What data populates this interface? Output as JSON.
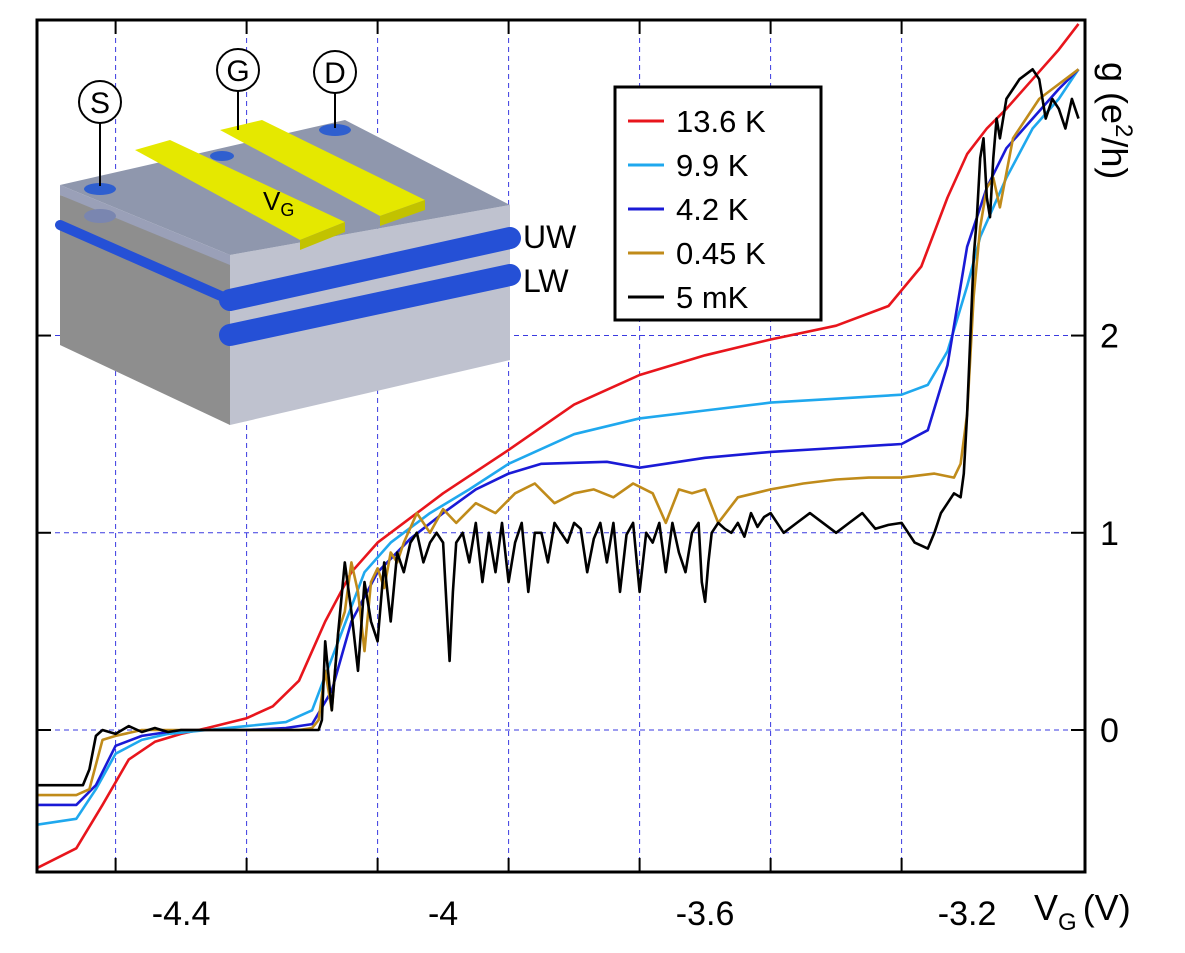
{
  "chart_data": {
    "type": "line",
    "xlabel": "V",
    "xlabel_sub": "G",
    "xunit": "(V)",
    "ylabel": "g (e",
    "ylabel_sup": "2",
    "ylabel_tail": "/h)",
    "xlim": [
      -4.62,
      -3.02
    ],
    "ylim": [
      -0.72,
      3.6
    ],
    "xticks": [
      -4.4,
      -4.0,
      -3.6,
      -3.2
    ],
    "xtick_labels": [
      "-4.4",
      "-4",
      "-3.6",
      "-3.2"
    ],
    "yticks": [
      0,
      1,
      2
    ],
    "ytick_labels": [
      "0",
      "1",
      "2"
    ],
    "grid": true,
    "legend_position": "top-center",
    "series": [
      {
        "name": "13.6 K",
        "color": "#e8151c",
        "x": [
          -4.62,
          -4.56,
          -4.52,
          -4.48,
          -4.44,
          -4.4,
          -4.36,
          -4.3,
          -4.26,
          -4.22,
          -4.18,
          -4.14,
          -4.1,
          -4.04,
          -4.0,
          -3.9,
          -3.8,
          -3.7,
          -3.6,
          -3.5,
          -3.4,
          -3.32,
          -3.27,
          -3.23,
          -3.2,
          -3.17,
          -3.14,
          -3.1,
          -3.06,
          -3.03
        ],
        "y": [
          -0.7,
          -0.6,
          -0.38,
          -0.15,
          -0.06,
          -0.02,
          0.01,
          0.06,
          0.12,
          0.25,
          0.55,
          0.8,
          0.95,
          1.1,
          1.2,
          1.42,
          1.65,
          1.8,
          1.9,
          1.98,
          2.05,
          2.15,
          2.35,
          2.7,
          2.92,
          3.05,
          3.15,
          3.3,
          3.45,
          3.58
        ]
      },
      {
        "name": "9.9 K",
        "color": "#1fa8ee",
        "x": [
          -4.62,
          -4.56,
          -4.53,
          -4.5,
          -4.46,
          -4.42,
          -4.36,
          -4.3,
          -4.24,
          -4.2,
          -4.16,
          -4.12,
          -4.08,
          -4.02,
          -3.96,
          -3.9,
          -3.8,
          -3.7,
          -3.6,
          -3.5,
          -3.4,
          -3.3,
          -3.26,
          -3.23,
          -3.2,
          -3.18,
          -3.14,
          -3.1,
          -3.06,
          -3.03
        ],
        "y": [
          -0.48,
          -0.45,
          -0.3,
          -0.12,
          -0.05,
          -0.02,
          0.0,
          0.02,
          0.04,
          0.1,
          0.45,
          0.8,
          0.95,
          1.1,
          1.22,
          1.35,
          1.5,
          1.58,
          1.62,
          1.66,
          1.68,
          1.7,
          1.75,
          1.92,
          2.25,
          2.5,
          2.8,
          3.05,
          3.2,
          3.35
        ]
      },
      {
        "name": "4.2 K",
        "color": "#1a1ad6",
        "x": [
          -4.62,
          -4.56,
          -4.53,
          -4.5,
          -4.46,
          -4.4,
          -4.3,
          -4.24,
          -4.2,
          -4.17,
          -4.14,
          -4.1,
          -4.05,
          -4.0,
          -3.95,
          -3.9,
          -3.85,
          -3.75,
          -3.7,
          -3.6,
          -3.5,
          -3.4,
          -3.3,
          -3.26,
          -3.23,
          -3.2,
          -3.17,
          -3.14,
          -3.1,
          -3.06,
          -3.03
        ],
        "y": [
          -0.38,
          -0.38,
          -0.28,
          -0.08,
          -0.03,
          0.0,
          0.0,
          0.01,
          0.03,
          0.2,
          0.55,
          0.8,
          0.97,
          1.1,
          1.22,
          1.3,
          1.35,
          1.36,
          1.33,
          1.38,
          1.41,
          1.43,
          1.45,
          1.52,
          1.85,
          2.45,
          2.75,
          2.95,
          3.1,
          3.25,
          3.35
        ]
      },
      {
        "name": "0.45 K",
        "color": "#c08b1a",
        "x": [
          -4.62,
          -4.56,
          -4.54,
          -4.52,
          -4.5,
          -4.46,
          -4.42,
          -4.36,
          -4.28,
          -4.22,
          -4.2,
          -4.19,
          -4.18,
          -4.17,
          -4.16,
          -4.15,
          -4.14,
          -4.13,
          -4.12,
          -4.11,
          -4.1,
          -4.09,
          -4.08,
          -4.07,
          -4.06,
          -4.04,
          -4.02,
          -4.0,
          -3.98,
          -3.95,
          -3.92,
          -3.89,
          -3.86,
          -3.83,
          -3.8,
          -3.77,
          -3.74,
          -3.71,
          -3.68,
          -3.66,
          -3.64,
          -3.62,
          -3.6,
          -3.58,
          -3.55,
          -3.5,
          -3.45,
          -3.4,
          -3.35,
          -3.3,
          -3.25,
          -3.22,
          -3.21,
          -3.2,
          -3.19,
          -3.18,
          -3.17,
          -3.16,
          -3.15,
          -3.13,
          -3.11,
          -3.09,
          -3.07,
          -3.05,
          -3.03
        ],
        "y": [
          -0.33,
          -0.33,
          -0.3,
          -0.05,
          -0.03,
          0.0,
          0.0,
          0.0,
          0.0,
          0.0,
          0.01,
          0.05,
          0.3,
          0.1,
          0.5,
          0.6,
          0.85,
          0.7,
          0.4,
          0.75,
          0.82,
          0.72,
          0.9,
          0.85,
          0.95,
          1.1,
          1.0,
          1.12,
          1.05,
          1.15,
          1.1,
          1.2,
          1.25,
          1.15,
          1.2,
          1.22,
          1.18,
          1.25,
          1.2,
          1.05,
          1.22,
          1.2,
          1.22,
          1.05,
          1.18,
          1.22,
          1.25,
          1.27,
          1.28,
          1.28,
          1.3,
          1.28,
          1.35,
          1.6,
          2.2,
          2.55,
          2.75,
          2.8,
          2.65,
          3.0,
          3.1,
          3.2,
          3.25,
          3.3,
          3.35
        ]
      },
      {
        "name": "5 mK",
        "color": "#000000",
        "x": [
          -4.62,
          -4.55,
          -4.54,
          -4.53,
          -4.52,
          -4.5,
          -4.48,
          -4.46,
          -4.44,
          -4.42,
          -4.4,
          -4.36,
          -4.3,
          -4.25,
          -4.22,
          -4.2,
          -4.19,
          -4.185,
          -4.18,
          -4.17,
          -4.16,
          -4.15,
          -4.14,
          -4.13,
          -4.12,
          -4.11,
          -4.1,
          -4.09,
          -4.08,
          -4.07,
          -4.06,
          -4.05,
          -4.04,
          -4.03,
          -4.02,
          -4.01,
          -4.0,
          -3.99,
          -3.985,
          -3.98,
          -3.97,
          -3.96,
          -3.95,
          -3.94,
          -3.93,
          -3.92,
          -3.91,
          -3.9,
          -3.89,
          -3.88,
          -3.87,
          -3.86,
          -3.85,
          -3.84,
          -3.83,
          -3.82,
          -3.81,
          -3.8,
          -3.79,
          -3.78,
          -3.77,
          -3.76,
          -3.75,
          -3.74,
          -3.73,
          -3.72,
          -3.71,
          -3.7,
          -3.69,
          -3.68,
          -3.67,
          -3.66,
          -3.65,
          -3.64,
          -3.63,
          -3.62,
          -3.61,
          -3.605,
          -3.6,
          -3.595,
          -3.59,
          -3.58,
          -3.57,
          -3.56,
          -3.55,
          -3.54,
          -3.53,
          -3.52,
          -3.51,
          -3.5,
          -3.48,
          -3.46,
          -3.44,
          -3.42,
          -3.4,
          -3.38,
          -3.36,
          -3.34,
          -3.32,
          -3.3,
          -3.28,
          -3.26,
          -3.25,
          -3.24,
          -3.23,
          -3.22,
          -3.21,
          -3.205,
          -3.2,
          -3.195,
          -3.19,
          -3.185,
          -3.18,
          -3.175,
          -3.17,
          -3.165,
          -3.16,
          -3.155,
          -3.15,
          -3.14,
          -3.13,
          -3.12,
          -3.1,
          -3.09,
          -3.08,
          -3.07,
          -3.06,
          -3.05,
          -3.04,
          -3.03
        ],
        "y": [
          -0.28,
          -0.28,
          -0.2,
          -0.03,
          0.0,
          -0.02,
          0.02,
          -0.01,
          0.01,
          -0.01,
          0.0,
          0.0,
          0.0,
          0.0,
          0.0,
          0.0,
          0.0,
          0.05,
          0.45,
          0.1,
          0.5,
          0.85,
          0.6,
          0.3,
          0.75,
          0.55,
          0.45,
          0.85,
          0.55,
          0.9,
          0.8,
          0.95,
          1.0,
          0.85,
          0.95,
          1.0,
          0.95,
          0.35,
          0.7,
          0.95,
          1.0,
          0.85,
          1.05,
          0.75,
          1.0,
          0.8,
          1.05,
          0.75,
          0.95,
          1.05,
          0.7,
          1.0,
          1.0,
          0.85,
          1.05,
          1.0,
          0.95,
          1.05,
          1.02,
          0.8,
          0.97,
          1.05,
          0.85,
          1.05,
          0.7,
          0.99,
          1.05,
          0.7,
          1.0,
          0.95,
          1.05,
          0.8,
          1.05,
          0.9,
          0.8,
          1.0,
          1.05,
          0.75,
          0.65,
          0.85,
          1.0,
          1.05,
          1.02,
          1.0,
          1.05,
          0.98,
          1.1,
          1.03,
          1.08,
          1.1,
          1.0,
          1.05,
          1.1,
          1.05,
          1.0,
          1.05,
          1.1,
          1.02,
          1.04,
          1.05,
          0.95,
          0.92,
          1.0,
          1.1,
          1.15,
          1.2,
          1.18,
          1.3,
          1.6,
          2.0,
          2.4,
          2.6,
          2.9,
          3.0,
          2.7,
          2.6,
          2.9,
          3.1,
          3.0,
          3.2,
          3.25,
          3.3,
          3.35,
          3.3,
          3.1,
          3.2,
          3.15,
          3.05,
          3.2,
          3.1
        ]
      }
    ]
  },
  "inset": {
    "source_label": "S",
    "gate_label": "G",
    "drain_label": "D",
    "gate_voltage": "V",
    "gate_voltage_sub": "G",
    "upper_wire": "UW",
    "lower_wire": "LW"
  }
}
